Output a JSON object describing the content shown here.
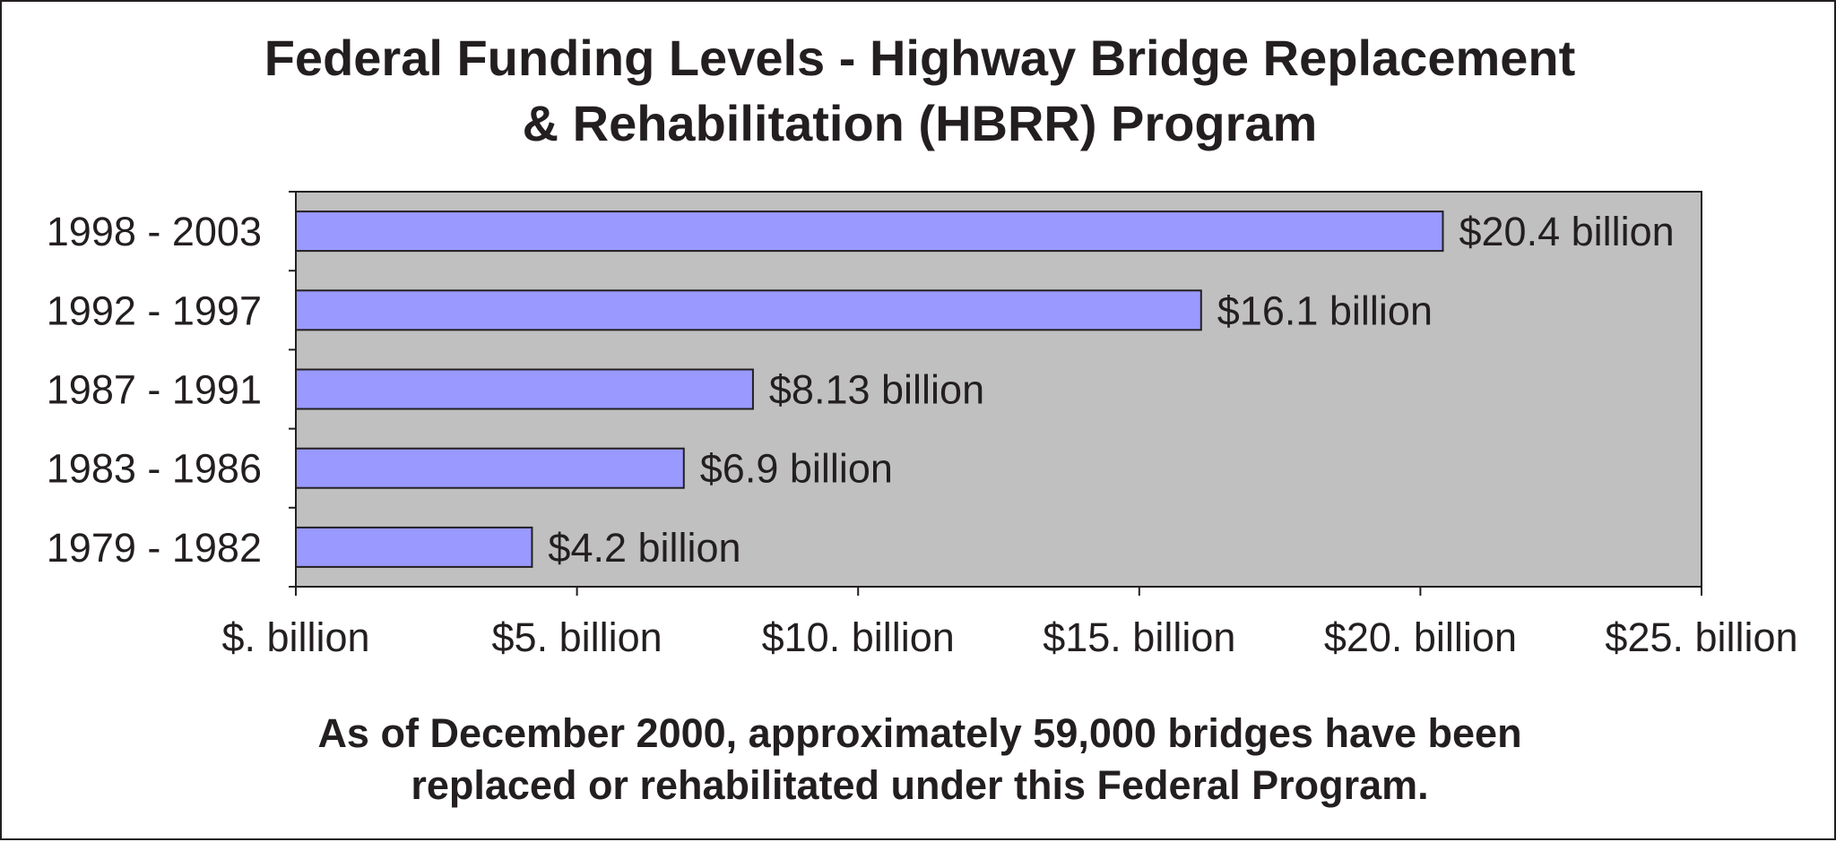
{
  "chart_data": {
    "type": "bar",
    "orientation": "horizontal",
    "title_lines": [
      "Federal Funding Levels - Highway Bridge Replacement",
      "& Rehabilitation (HBRR) Program"
    ],
    "categories": [
      "1998 - 2003",
      "1992 - 1997",
      "1987 - 1991",
      "1983 - 1986",
      "1979 - 1982"
    ],
    "values": [
      20.4,
      16.1,
      8.13,
      6.9,
      4.2
    ],
    "data_labels": [
      "$20.4 billion",
      "$16.1 billion",
      "$8.13 billion",
      "$6.9 billion",
      "$4.2 billion"
    ],
    "xlim": [
      0,
      25
    ],
    "xticks": [
      0,
      5,
      10,
      15,
      20,
      25
    ],
    "xtick_labels": [
      "$. billion",
      "$5. billion",
      "$10. billion",
      "$15. billion",
      "$20. billion",
      "$25. billion"
    ],
    "xlabel": "",
    "ylabel": "",
    "grid": false,
    "legend": "none",
    "colors": {
      "bar": "#9999ff",
      "plot_background": "#c0c0c0",
      "outline": "#231f20"
    }
  },
  "note_lines": [
    "As of December 2000, approximately 59,000 bridges have been",
    "replaced or rehabilitated under this Federal Program."
  ]
}
